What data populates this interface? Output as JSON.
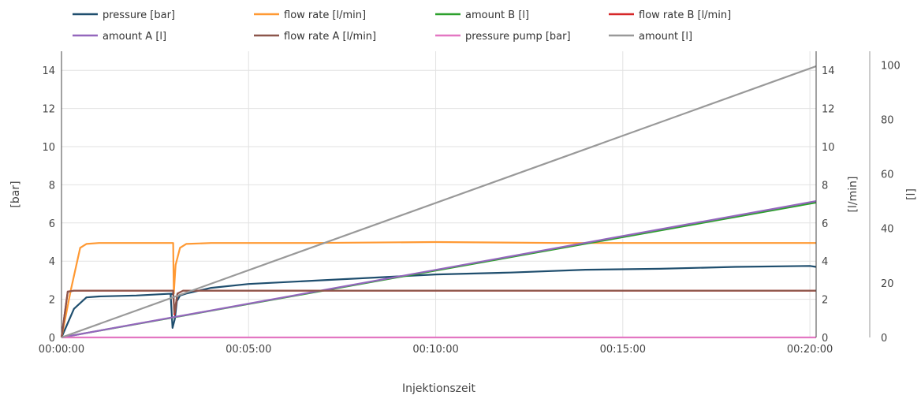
{
  "chart_data": {
    "type": "line",
    "xlabel": "Injektionszeit",
    "x_ticks": [
      "00:00:00",
      "00:05:00",
      "00:10:00",
      "00:15:00",
      "00:20:00"
    ],
    "xlim_seconds": [
      0,
      1210
    ],
    "y_left": {
      "label": "[bar]",
      "range": [
        0,
        15
      ],
      "ticks": [
        "0",
        "2",
        "4",
        "6",
        "8",
        "10",
        "12",
        "14"
      ]
    },
    "y_right1": {
      "label": "[l/min]",
      "range": [
        0,
        15
      ],
      "ticks": [
        "0",
        "2",
        "4",
        "6",
        "8",
        "10",
        "12",
        "14"
      ]
    },
    "y_right2": {
      "label": "[l]",
      "range": [
        0,
        105
      ],
      "ticks": [
        "0",
        "20",
        "40",
        "60",
        "80",
        "100"
      ]
    },
    "grid": true,
    "legend_position": "top",
    "series": [
      {
        "name": "pressure [bar]",
        "color": "#1f4e6e",
        "axis": "left",
        "x": [
          0,
          20,
          40,
          60,
          120,
          180,
          175,
          178,
          182,
          185,
          190,
          200,
          240,
          300,
          420,
          480,
          600,
          720,
          840,
          960,
          1080,
          1200,
          1210
        ],
        "y": [
          0,
          1.5,
          2.1,
          2.15,
          2.2,
          2.3,
          2.25,
          0.5,
          1.0,
          1.9,
          2.2,
          2.3,
          2.6,
          2.8,
          3.0,
          3.1,
          3.3,
          3.4,
          3.55,
          3.6,
          3.7,
          3.75,
          3.7
        ]
      },
      {
        "name": "flow rate [l/min]",
        "color": "#ff9933",
        "axis": "right1",
        "x": [
          0,
          15,
          30,
          40,
          60,
          120,
          179,
          180,
          183,
          190,
          200,
          240,
          400,
          600,
          800,
          1000,
          1210
        ],
        "y": [
          0,
          2.5,
          4.7,
          4.9,
          4.95,
          4.95,
          4.95,
          2.3,
          3.8,
          4.7,
          4.9,
          4.95,
          4.95,
          5.0,
          4.95,
          4.95,
          4.95
        ]
      },
      {
        "name": "amount B [l]",
        "color": "#2ca02c",
        "axis": "right2",
        "x": [
          0,
          1210
        ],
        "y": [
          0,
          49.5
        ]
      },
      {
        "name": "flow rate B [l/min]",
        "color": "#d62728",
        "axis": "right1",
        "x": [
          0,
          10,
          20,
          120,
          179,
          181,
          186,
          195,
          1210
        ],
        "y": [
          0,
          2.4,
          2.45,
          2.45,
          2.45,
          1.2,
          2.3,
          2.45,
          2.45
        ]
      },
      {
        "name": "amount A [l]",
        "color": "#9467bd",
        "axis": "right2",
        "x": [
          0,
          1210
        ],
        "y": [
          0,
          50
        ]
      },
      {
        "name": "flow rate A [l/min]",
        "color": "#8c564b",
        "axis": "right1",
        "x": [
          0,
          10,
          20,
          120,
          179,
          181,
          186,
          195,
          1210
        ],
        "y": [
          0,
          2.4,
          2.45,
          2.45,
          2.45,
          1.3,
          2.3,
          2.45,
          2.45
        ]
      },
      {
        "name": "pressure pump [bar]",
        "color": "#e377c2",
        "axis": "left",
        "x": [
          0,
          1210
        ],
        "y": [
          0,
          0
        ]
      },
      {
        "name": "amount [l]",
        "color": "#999999",
        "axis": "right2",
        "x": [
          0,
          1210
        ],
        "y": [
          0,
          99.5
        ]
      }
    ]
  }
}
